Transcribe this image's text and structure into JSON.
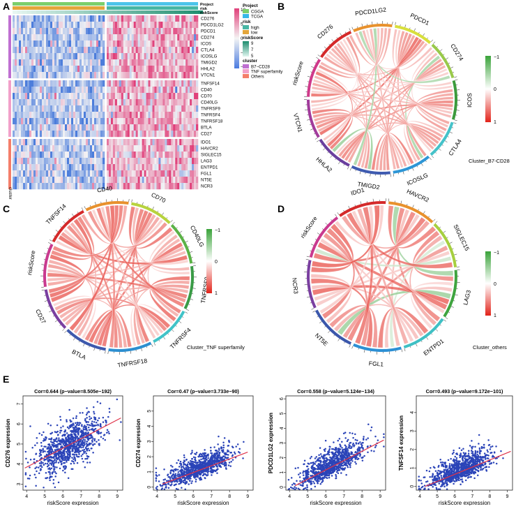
{
  "panels": {
    "A": {
      "label": "A",
      "annotation_rows": [
        "Project",
        "risk",
        "riskScore"
      ],
      "genes": [
        "CD276",
        "PDCD1LG2",
        "PDCD1",
        "CD274",
        "ICOS",
        "CTLA4",
        "ICOSLG",
        "TMIGD2",
        "HHLA2",
        "VTCN1",
        "TNFSF14",
        "CD40",
        "CD70",
        "CD40LG",
        "TNFRSF9",
        "TNFRSF4",
        "TNFRSF18",
        "BTLA",
        "CD27",
        "IDO1",
        "HAVCR2",
        "SIGLEC15",
        "LAG3",
        "ENTPD1",
        "FGL1",
        "NT5E",
        "NCR3"
      ],
      "cluster_sizes": [
        10,
        9,
        8
      ],
      "side_label": "cluster",
      "colorbar_ticks": [
        "10",
        "5",
        "0",
        "−5",
        "−10"
      ],
      "legend": {
        "project_title": "Project",
        "project_items": [
          {
            "label": "CGGA",
            "color": "#7ccf6c"
          },
          {
            "label": "TCGA",
            "color": "#38b8e8"
          }
        ],
        "risk_title": "risk",
        "risk_items": [
          {
            "label": "high",
            "color": "#47b6a4"
          },
          {
            "label": "low",
            "color": "#e3a63b"
          }
        ],
        "riskscore_title": "riskScore",
        "riskscore_ticks": [
          "9",
          "7",
          "5"
        ],
        "cluster_title": "cluster",
        "cluster_items": [
          {
            "label": "B7−CD28",
            "color": "#bf6fd1"
          },
          {
            "label": "TNF superfamily",
            "color": "#f2a0c9"
          },
          {
            "label": "Others",
            "color": "#f47e6a"
          }
        ]
      }
    },
    "B": {
      "label": "B",
      "caption": "Cluster_B7-CD28",
      "sectors": [
        {
          "name": "PDCD1",
          "color": "#d8df3d"
        },
        {
          "name": "CD274",
          "color": "#99c94a"
        },
        {
          "name": "ICOS",
          "color": "#3c9a3c"
        },
        {
          "name": "CTLA4",
          "color": "#45c2c9"
        },
        {
          "name": "ICOSLG",
          "color": "#2d96d6"
        },
        {
          "name": "TMIGD2",
          "color": "#3f5bb0"
        },
        {
          "name": "HHLA2",
          "color": "#6a3f9e"
        },
        {
          "name": "VTCN1",
          "color": "#a13b9b"
        },
        {
          "name": "riskScore",
          "color": "#cf3a8a"
        },
        {
          "name": "CD276",
          "color": "#d42a2a"
        },
        {
          "name": "PDCD1LG2",
          "color": "#e8912d"
        }
      ],
      "scale_labels": [
        "−1",
        "0",
        "1"
      ]
    },
    "C": {
      "label": "C",
      "caption": "Cluster_TNF superfamily",
      "sectors": [
        {
          "name": "CD70",
          "color": "#b8d33e"
        },
        {
          "name": "CD40LG",
          "color": "#5bb247"
        },
        {
          "name": "TNFRSF9",
          "color": "#3a9b46"
        },
        {
          "name": "TNFRSF4",
          "color": "#41c3c8"
        },
        {
          "name": "TNFRSF18",
          "color": "#2d8fd0"
        },
        {
          "name": "BTLA",
          "color": "#3e59ad"
        },
        {
          "name": "CD27",
          "color": "#7a3fa0"
        },
        {
          "name": "riskScore",
          "color": "#c93a8f"
        },
        {
          "name": "TNFSF14",
          "color": "#d42a2a"
        },
        {
          "name": "CD40",
          "color": "#e8912d"
        }
      ],
      "scale_labels": [
        "−1",
        "0",
        "1"
      ]
    },
    "D": {
      "label": "D",
      "caption": "Cluster_others",
      "sectors": [
        {
          "name": "HAVCR2",
          "color": "#e8912d"
        },
        {
          "name": "SIGLEC15",
          "color": "#a6cf3f"
        },
        {
          "name": "LAG3",
          "color": "#3fa43f"
        },
        {
          "name": "ENTPD1",
          "color": "#3fc0c4"
        },
        {
          "name": "FGL1",
          "color": "#2d90d4"
        },
        {
          "name": "NT5E",
          "color": "#3b57ab"
        },
        {
          "name": "NCR3",
          "color": "#7a3fa0"
        },
        {
          "name": "riskScore",
          "color": "#c93a8f"
        },
        {
          "name": "IDO1",
          "color": "#d42a2a"
        }
      ],
      "scale_labels": [
        "−1",
        "0",
        "1"
      ]
    },
    "E": {
      "label": "E"
    }
  },
  "chart_data": [
    {
      "type": "scatter",
      "title": "Cor=0.644 (p−value=8.505e−192)",
      "xlabel": "riskScore expression",
      "ylabel": "CD276 expression",
      "xlim": [
        3.8,
        9.3
      ],
      "ylim": [
        2.7,
        7.4
      ],
      "xticks": [
        4,
        5,
        6,
        7,
        8,
        9
      ],
      "yticks": [
        3,
        4,
        5,
        6,
        7
      ],
      "fit": {
        "x": [
          3.9,
          9.2
        ],
        "y": [
          3.8,
          6.3
        ]
      },
      "n_points": 1000,
      "x_center": 6.3,
      "x_spread": 0.9,
      "noise": 0.55,
      "skew": 0,
      "point_color": "#2b44b8",
      "line_color": "#e0344a"
    },
    {
      "type": "scatter",
      "title": "Cor=0.47 (p−value=3.733e−90)",
      "xlabel": "riskScore expression",
      "ylabel": "CD274 expression",
      "xlim": [
        3.8,
        9.3
      ],
      "ylim": [
        -0.2,
        6.0
      ],
      "xticks": [
        4,
        5,
        6,
        7,
        8,
        9
      ],
      "yticks": [
        0,
        1,
        2,
        3,
        4,
        5
      ],
      "fit": {
        "x": [
          4.3,
          9.0
        ],
        "y": [
          0.2,
          2.3
        ]
      },
      "n_points": 1000,
      "x_center": 6.3,
      "x_spread": 0.9,
      "noise": 0.45,
      "skew": 0.9,
      "point_color": "#2b44b8",
      "line_color": "#e0344a"
    },
    {
      "type": "scatter",
      "title": "Cor=0.558 (p−value=5.124e−134)",
      "xlabel": "riskScore expression",
      "ylabel": "PDCD1LG2 expression",
      "xlim": [
        3.8,
        9.3
      ],
      "ylim": [
        -0.2,
        6.2
      ],
      "xticks": [
        4,
        5,
        6,
        7,
        8,
        9
      ],
      "yticks": [
        0,
        1,
        2,
        3,
        4,
        5,
        6
      ],
      "fit": {
        "x": [
          4.3,
          9.2
        ],
        "y": [
          0.1,
          3.2
        ]
      },
      "n_points": 1000,
      "x_center": 6.3,
      "x_spread": 0.9,
      "noise": 0.55,
      "skew": 0.8,
      "point_color": "#2b44b8",
      "line_color": "#e0344a"
    },
    {
      "type": "scatter",
      "title": "Cor=0.493 (p−value=9.172e−101)",
      "xlabel": "riskScore expression",
      "ylabel": "TNFSF14 expression",
      "xlim": [
        3.8,
        9.3
      ],
      "ylim": [
        -0.2,
        4.9
      ],
      "xticks": [
        4,
        5,
        6,
        7,
        8,
        9
      ],
      "yticks": [
        0,
        1,
        2,
        3,
        4
      ],
      "fit": {
        "x": [
          4.3,
          9.2
        ],
        "y": [
          0.0,
          1.9
        ]
      },
      "n_points": 1000,
      "x_center": 6.3,
      "x_spread": 0.9,
      "noise": 0.4,
      "skew": 1.0,
      "point_color": "#2b44b8",
      "line_color": "#e0344a"
    }
  ]
}
